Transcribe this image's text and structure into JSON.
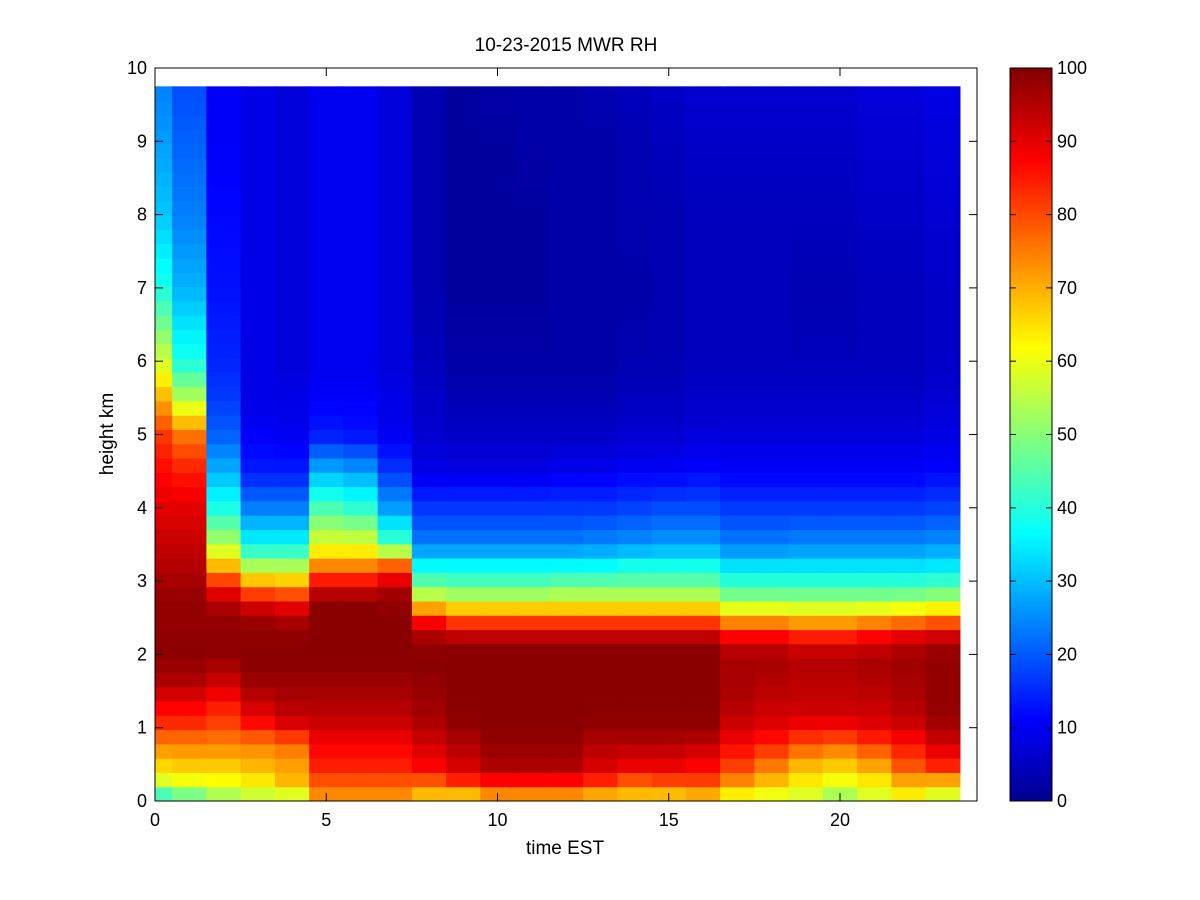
{
  "chart_data": {
    "type": "heatmap",
    "title": "10-23-2015 MWR RH",
    "xlabel": "time EST",
    "ylabel": "height km",
    "xlim": [
      0,
      24
    ],
    "ylim": [
      0,
      10
    ],
    "xticks": [
      0,
      5,
      10,
      15,
      20
    ],
    "yticks": [
      0,
      1,
      2,
      3,
      4,
      5,
      6,
      7,
      8,
      9,
      10
    ],
    "x_centers": [
      0,
      1,
      2,
      3,
      4,
      5,
      6,
      7,
      8,
      9,
      10,
      11,
      12,
      13,
      14,
      15,
      16,
      17,
      18,
      19,
      20,
      21,
      22,
      23
    ],
    "y_profile_heights": [
      0,
      0.1,
      0.3,
      0.5,
      0.8,
      1,
      1.3,
      1.6,
      1.9,
      2.1,
      2.3,
      2.5,
      2.7,
      2.9,
      3.2,
      3.5,
      4,
      4.5,
      5,
      5.5,
      6,
      7,
      8,
      9,
      9.75
    ],
    "y_top": 9.75,
    "colorbar": {
      "colormap": "jet",
      "range": [
        0,
        100
      ],
      "ticks": [
        0,
        10,
        20,
        30,
        40,
        50,
        60,
        70,
        80,
        90,
        100
      ]
    },
    "profiles": [
      [
        35,
        45,
        60,
        67,
        75,
        82,
        88,
        95,
        98,
        99,
        98,
        98,
        98,
        97,
        95,
        93,
        90,
        87,
        82,
        70,
        58,
        40,
        32,
        28,
        25
      ],
      [
        35,
        50,
        62,
        68,
        75,
        82,
        88,
        95,
        98,
        99,
        98,
        98,
        98,
        97,
        95,
        93,
        90,
        85,
        76,
        55,
        40,
        30,
        25,
        22,
        20
      ],
      [
        40,
        55,
        63,
        68,
        75,
        80,
        85,
        92,
        97,
        99,
        98,
        98,
        95,
        88,
        70,
        55,
        40,
        30,
        22,
        18,
        16,
        14,
        13,
        12,
        12
      ],
      [
        40,
        58,
        65,
        70,
        75,
        85,
        92,
        97,
        99,
        99,
        98,
        97,
        90,
        77,
        55,
        38,
        25,
        15,
        12,
        10,
        10,
        10,
        10,
        10,
        10
      ],
      [
        40,
        60,
        70,
        72,
        77,
        90,
        95,
        97,
        99,
        99,
        98,
        95,
        88,
        75,
        55,
        38,
        25,
        15,
        11,
        10,
        9,
        9,
        9,
        9,
        9
      ],
      [
        40,
        75,
        80,
        85,
        88,
        92,
        95,
        97,
        99,
        99,
        99,
        99,
        99,
        92,
        75,
        60,
        45,
        30,
        15,
        12,
        11,
        11,
        11,
        11,
        11
      ],
      [
        40,
        75,
        80,
        85,
        88,
        92,
        95,
        97,
        99,
        99,
        99,
        99,
        99,
        92,
        75,
        60,
        42,
        28,
        14,
        12,
        11,
        11,
        11,
        11,
        11
      ],
      [
        40,
        75,
        80,
        85,
        88,
        92,
        95,
        97,
        99,
        99,
        99,
        99,
        98,
        96,
        80,
        45,
        28,
        18,
        11,
        10,
        9,
        9,
        9,
        9,
        9
      ],
      [
        40,
        70,
        80,
        88,
        92,
        95,
        97,
        98,
        99,
        98,
        95,
        85,
        65,
        50,
        38,
        25,
        18,
        10,
        8,
        7,
        6,
        5,
        5,
        5,
        5
      ],
      [
        40,
        70,
        85,
        92,
        95,
        98,
        99,
        99,
        99,
        99,
        92,
        78,
        62,
        48,
        38,
        25,
        18,
        10,
        7,
        5,
        4,
        3,
        3,
        3,
        3
      ],
      [
        45,
        75,
        88,
        96,
        98,
        99,
        99,
        99,
        99,
        99,
        92,
        78,
        62,
        48,
        38,
        25,
        18,
        10,
        7,
        5,
        4,
        3,
        3,
        3,
        4
      ],
      [
        45,
        75,
        88,
        96,
        98,
        99,
        99,
        99,
        99,
        99,
        92,
        78,
        62,
        48,
        38,
        25,
        18,
        10,
        7,
        5,
        4,
        3,
        3,
        4,
        4
      ],
      [
        45,
        75,
        88,
        96,
        98,
        99,
        99,
        99,
        99,
        99,
        92,
        78,
        62,
        50,
        38,
        25,
        18,
        11,
        7,
        5,
        4,
        4,
        4,
        4,
        4
      ],
      [
        45,
        72,
        85,
        92,
        95,
        98,
        99,
        99,
        99,
        99,
        92,
        78,
        62,
        50,
        38,
        26,
        18,
        11,
        7,
        5,
        4,
        4,
        4,
        4,
        5
      ],
      [
        40,
        70,
        80,
        90,
        95,
        98,
        99,
        99,
        99,
        99,
        92,
        78,
        62,
        50,
        40,
        27,
        19,
        12,
        8,
        6,
        5,
        4,
        5,
        5,
        6
      ],
      [
        35,
        70,
        82,
        90,
        95,
        98,
        99,
        99,
        99,
        99,
        92,
        78,
        62,
        50,
        40,
        28,
        20,
        12,
        8,
        6,
        5,
        5,
        5,
        6,
        7
      ],
      [
        35,
        72,
        82,
        88,
        94,
        98,
        99,
        99,
        99,
        99,
        92,
        78,
        62,
        50,
        40,
        28,
        20,
        13,
        9,
        7,
        6,
        6,
        6,
        7,
        8
      ],
      [
        30,
        65,
        75,
        82,
        88,
        92,
        95,
        96,
        96,
        94,
        85,
        70,
        55,
        45,
        35,
        25,
        18,
        12,
        9,
        7,
        6,
        6,
        6,
        7,
        8
      ],
      [
        30,
        62,
        70,
        76,
        85,
        90,
        93,
        95,
        96,
        94,
        85,
        70,
        55,
        45,
        35,
        25,
        18,
        12,
        9,
        7,
        6,
        6,
        6,
        7,
        8
      ],
      [
        30,
        60,
        65,
        70,
        80,
        88,
        93,
        94,
        95,
        92,
        82,
        68,
        55,
        45,
        35,
        26,
        18,
        12,
        9,
        7,
        6,
        5,
        6,
        7,
        8
      ],
      [
        35,
        55,
        62,
        68,
        78,
        88,
        93,
        94,
        95,
        92,
        82,
        68,
        55,
        45,
        35,
        26,
        18,
        12,
        9,
        7,
        6,
        5,
        6,
        7,
        8
      ],
      [
        35,
        60,
        65,
        72,
        82,
        90,
        93,
        95,
        96,
        93,
        85,
        70,
        55,
        45,
        35,
        26,
        18,
        12,
        9,
        7,
        6,
        6,
        7,
        8,
        9
      ],
      [
        35,
        65,
        72,
        80,
        86,
        92,
        95,
        96,
        97,
        95,
        88,
        72,
        56,
        45,
        35,
        26,
        18,
        12,
        9,
        7,
        6,
        6,
        7,
        8,
        9
      ],
      [
        40,
        60,
        72,
        85,
        92,
        96,
        98,
        98,
        98,
        97,
        90,
        75,
        58,
        46,
        36,
        27,
        19,
        13,
        10,
        8,
        7,
        7,
        8,
        9,
        10
      ]
    ]
  }
}
